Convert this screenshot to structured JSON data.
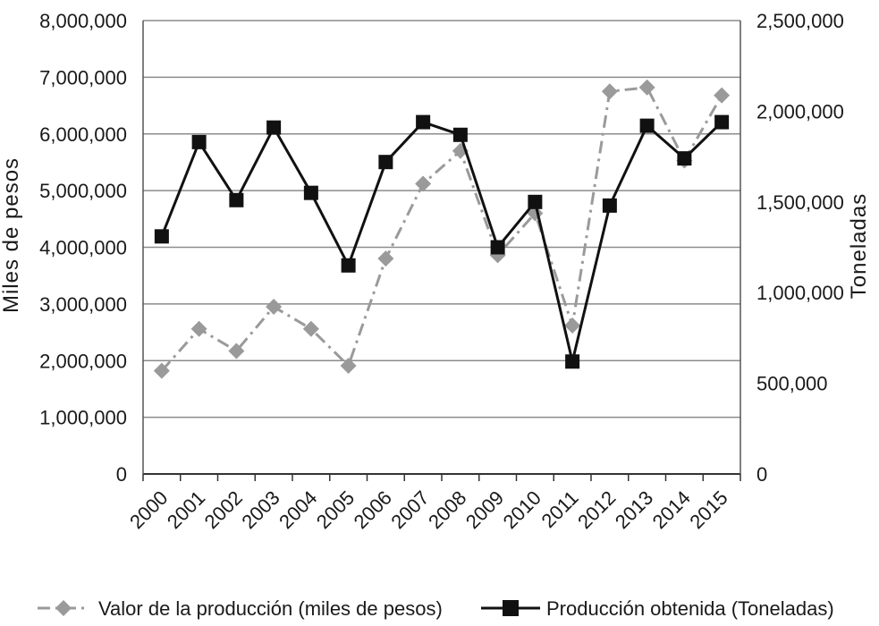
{
  "chart_data": {
    "type": "line",
    "categories": [
      "2000",
      "2001",
      "2002",
      "2003",
      "2004",
      "2005",
      "2006",
      "2007",
      "2008",
      "2009",
      "2010",
      "2011",
      "2012",
      "2013",
      "2014",
      "2015"
    ],
    "y_left": {
      "label": "Miles de pesos",
      "range": [
        0,
        8000000
      ],
      "ticks": [
        "0",
        "1,000,000",
        "2,000,000",
        "3,000,000",
        "4,000,000",
        "5,000,000",
        "6,000,000",
        "7,000,000",
        "8,000,000"
      ]
    },
    "y_right": {
      "label": "Toneladas",
      "range": [
        0,
        2500000
      ],
      "ticks": [
        "0",
        "500,000",
        "1,000,000",
        "1,500,000",
        "2,000,000",
        "2,500,000"
      ]
    },
    "grid": true,
    "legend_position": "bottom",
    "series": [
      {
        "name": "Valor de la producción (miles de pesos)",
        "axis": "left",
        "style": "dash-dot",
        "marker": "diamond",
        "color": "#9a9a9a",
        "values": [
          1820000,
          2560000,
          2170000,
          2950000,
          2560000,
          1910000,
          3800000,
          5120000,
          5700000,
          3860000,
          4600000,
          2620000,
          6750000,
          6820000,
          5530000,
          6680000
        ]
      },
      {
        "name": "Producción obtenida (Toneladas)",
        "axis": "right",
        "style": "solid",
        "marker": "square",
        "color": "#111111",
        "values": [
          1310000,
          1830000,
          1510000,
          1910000,
          1550000,
          1150000,
          1720000,
          1940000,
          1870000,
          1250000,
          1500000,
          620000,
          1480000,
          1920000,
          1740000,
          1940000
        ]
      }
    ]
  }
}
